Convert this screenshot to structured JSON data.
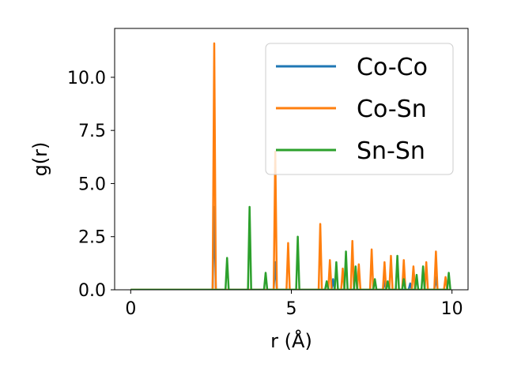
{
  "chart_data": {
    "type": "line",
    "xlabel": "r (Å)",
    "ylabel": "g(r)",
    "xlim": [
      -0.5,
      10.5
    ],
    "ylim": [
      0.0,
      12.3
    ],
    "xticks": [
      0,
      5,
      10
    ],
    "yticks": [
      0.0,
      2.5,
      5.0,
      7.5,
      10.0
    ],
    "xtick_labels": [
      "0",
      "5",
      "10"
    ],
    "ytick_labels": [
      "0.0",
      "2.5",
      "5.0",
      "7.5",
      "10.0"
    ],
    "grid": false,
    "legend_position": "upper right",
    "series": [
      {
        "name": "Co-Co",
        "color": "#1f77b4",
        "peaks": [
          [
            2.6,
            3.9
          ],
          [
            4.5,
            1.3
          ],
          [
            6.3,
            0.5
          ],
          [
            7.9,
            0.4
          ],
          [
            8.7,
            0.3
          ],
          [
            9.5,
            0.6
          ]
        ]
      },
      {
        "name": "Co-Sn",
        "color": "#ff7f0e",
        "peaks": [
          [
            2.6,
            11.6
          ],
          [
            4.5,
            6.5
          ],
          [
            4.9,
            2.2
          ],
          [
            5.9,
            3.1
          ],
          [
            6.2,
            1.4
          ],
          [
            6.6,
            1.0
          ],
          [
            6.9,
            2.3
          ],
          [
            7.1,
            1.2
          ],
          [
            7.5,
            1.9
          ],
          [
            7.9,
            1.3
          ],
          [
            8.1,
            1.6
          ],
          [
            8.5,
            1.4
          ],
          [
            8.8,
            1.1
          ],
          [
            9.2,
            1.3
          ],
          [
            9.5,
            1.8
          ],
          [
            9.8,
            0.6
          ]
        ]
      },
      {
        "name": "Sn-Sn",
        "color": "#2ca02c",
        "peaks": [
          [
            3.0,
            1.5
          ],
          [
            3.7,
            3.9
          ],
          [
            4.2,
            0.8
          ],
          [
            5.2,
            2.5
          ],
          [
            6.1,
            0.4
          ],
          [
            6.4,
            1.3
          ],
          [
            6.7,
            1.8
          ],
          [
            7.0,
            1.1
          ],
          [
            7.6,
            0.5
          ],
          [
            8.0,
            0.4
          ],
          [
            8.3,
            1.6
          ],
          [
            8.5,
            0.5
          ],
          [
            8.9,
            0.7
          ],
          [
            9.1,
            1.1
          ],
          [
            9.9,
            0.8
          ]
        ]
      }
    ]
  }
}
